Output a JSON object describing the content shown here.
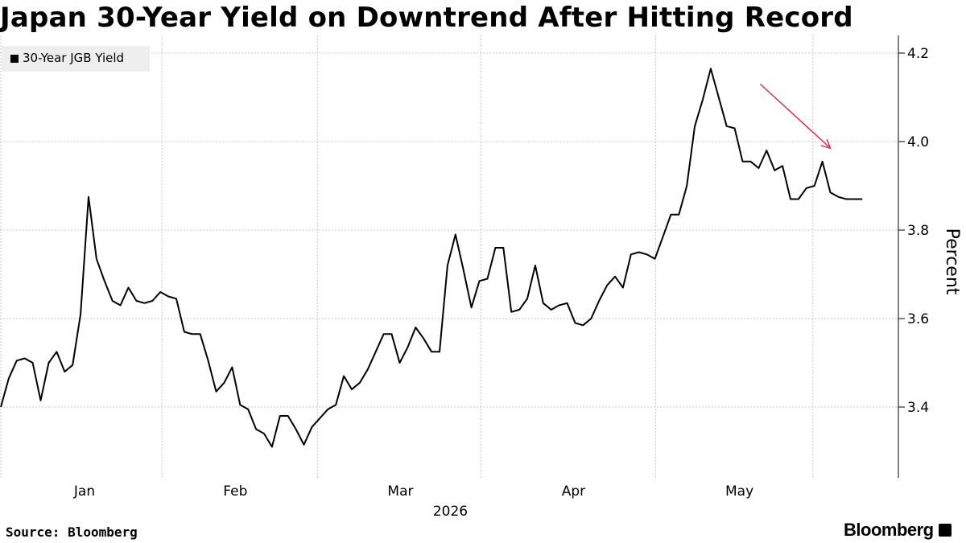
{
  "title": "Japan 30-Year Yield on Downtrend After Hitting Record",
  "source": "Source: Bloomberg",
  "brand": "Bloomberg",
  "colors": {
    "line": "#000000",
    "arrow": "#e8304a",
    "grid": "#c8c8c8",
    "legend_bg": "#eeeeee"
  },
  "chart_data": {
    "type": "line",
    "ylabel": "Percent",
    "ylim": [
      3.24,
      4.24
    ],
    "yticks": [
      3.4,
      3.6,
      3.8,
      4.0,
      4.2
    ],
    "ytick_labels": [
      "3.4",
      "3.6",
      "3.8",
      "4.0",
      "4.2"
    ],
    "xlim": [
      0,
      110
    ],
    "month_labels": [
      "Jan",
      "Feb",
      "Mar",
      "Apr",
      "May"
    ],
    "month_label_x": [
      10.5,
      29.4,
      50.1,
      71.8,
      92.6
    ],
    "month_gridlines_x": [
      0,
      20.2,
      39.7,
      60.2,
      82.1,
      101.8
    ],
    "year_label": "2026",
    "legend": {
      "position": "top-left",
      "entries": [
        "30-Year JGB Yield"
      ]
    },
    "series": [
      {
        "name": "30-Year JGB Yield",
        "x": [
          0,
          1,
          2,
          3,
          4,
          5,
          6,
          7,
          8,
          9,
          10,
          11,
          12,
          13,
          14,
          15,
          16,
          17,
          18,
          19,
          20,
          21,
          22,
          23,
          24,
          25,
          26,
          27,
          28,
          29,
          30,
          31,
          32,
          33,
          34,
          35,
          36,
          37,
          38,
          39,
          40,
          41,
          42,
          43,
          44,
          45,
          46,
          47,
          48,
          49,
          50,
          51,
          52,
          53,
          54,
          55,
          56,
          57,
          58,
          59,
          60,
          61,
          62,
          63,
          64,
          65,
          66,
          67,
          68,
          69,
          70,
          71,
          72,
          73,
          74,
          75,
          76,
          77,
          78,
          79,
          80,
          81,
          82,
          83,
          84,
          85,
          86,
          87,
          88,
          89,
          90,
          91,
          92,
          93,
          94,
          95,
          96,
          97,
          98,
          99,
          100,
          101,
          102,
          103,
          104,
          105,
          106,
          107,
          108
        ],
        "values": [
          3.4,
          3.465,
          3.505,
          3.51,
          3.5,
          3.415,
          3.5,
          3.525,
          3.48,
          3.495,
          3.61,
          3.875,
          3.735,
          3.685,
          3.64,
          3.63,
          3.67,
          3.64,
          3.635,
          3.64,
          3.66,
          3.65,
          3.645,
          3.57,
          3.565,
          3.565,
          3.505,
          3.435,
          3.455,
          3.49,
          3.405,
          3.395,
          3.35,
          3.34,
          3.31,
          3.38,
          3.38,
          3.35,
          3.315,
          3.355,
          3.375,
          3.395,
          3.405,
          3.47,
          3.44,
          3.455,
          3.485,
          3.525,
          3.565,
          3.565,
          3.5,
          3.535,
          3.58,
          3.555,
          3.525,
          3.525,
          3.72,
          3.79,
          3.71,
          3.625,
          3.685,
          3.69,
          3.76,
          3.76,
          3.615,
          3.62,
          3.645,
          3.72,
          3.635,
          3.62,
          3.63,
          3.635,
          3.59,
          3.585,
          3.6,
          3.64,
          3.675,
          3.695,
          3.67,
          3.745,
          3.75,
          3.745,
          3.735,
          3.785,
          3.835,
          3.835,
          3.9,
          4.035,
          4.095,
          4.165,
          4.1,
          4.035,
          4.03,
          3.955,
          3.955,
          3.94,
          3.98,
          3.935,
          3.945,
          3.87,
          3.87,
          3.895,
          3.9,
          3.955,
          3.885,
          3.875,
          3.87,
          3.87,
          3.87
        ]
      }
    ],
    "annotation": {
      "type": "arrow",
      "from": [
        95.2,
        4.13
      ],
      "to": [
        104.0,
        3.985
      ]
    }
  }
}
